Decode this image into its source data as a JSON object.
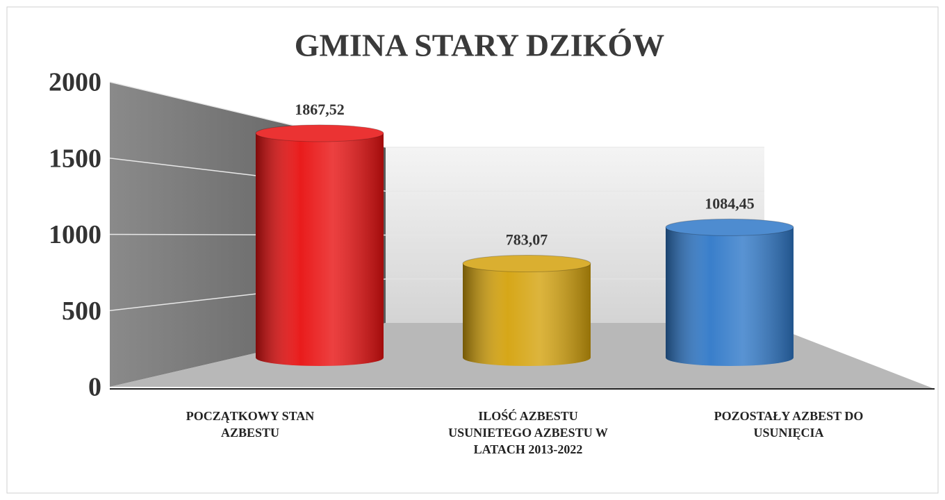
{
  "chart_data": {
    "type": "bar",
    "title": "GMINA STARY DZIKÓW",
    "categories": [
      "POCZĄTKOWY STAN AZBESTU",
      "ILOŚĆ AZBESTU USUNIETEGO AZBESTU W LATACH 2013-2022",
      "POZOSTAŁY AZBEST DO USUNIĘCIA"
    ],
    "values": [
      1867.52,
      783.07,
      1084.45
    ],
    "value_labels": [
      "1867,52",
      "783,07",
      "1084,45"
    ],
    "colors": [
      "#e81010",
      "#d4a20c",
      "#2f78c8"
    ],
    "ylim": [
      0,
      2000
    ],
    "yticks": [
      0,
      500,
      1000,
      1500,
      2000
    ],
    "grid": true
  }
}
